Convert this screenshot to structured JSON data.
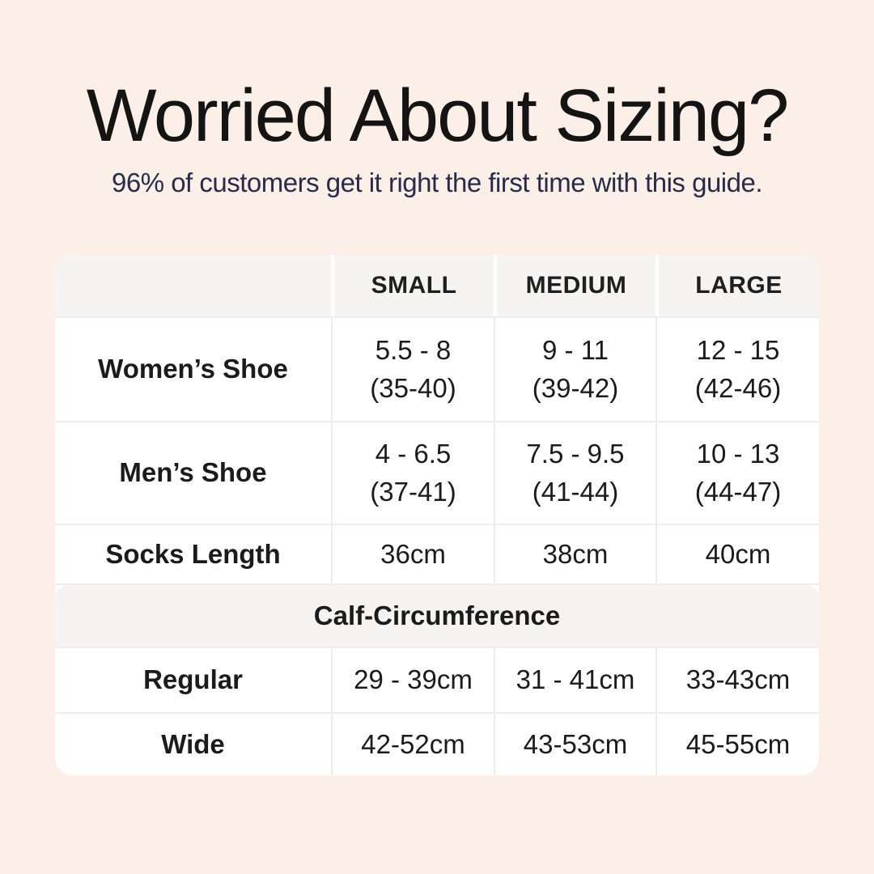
{
  "colors": {
    "background": "#fcefe7",
    "panel": "#ffffff",
    "band": "#f5f4f2",
    "divider": "#efedea",
    "text": "#1b1b1b",
    "subtitle": "#272c49"
  },
  "header": {
    "title": "Worried About Sizing?",
    "subtitle": "96% of customers get it right the first time with this guide."
  },
  "table": {
    "column_headers": [
      "SMALL",
      "MEDIUM",
      "LARGE"
    ],
    "shoe_rows": [
      {
        "label": "Women’s Shoe",
        "cells": [
          {
            "l1": "5.5 - 8",
            "l2": "(35-40)"
          },
          {
            "l1": "9 - 11",
            "l2": "(39-42)"
          },
          {
            "l1": "12 - 15",
            "l2": "(42-46)"
          }
        ]
      },
      {
        "label": "Men’s Shoe",
        "cells": [
          {
            "l1": "4 - 6.5",
            "l2": "(37-41)"
          },
          {
            "l1": "7.5 - 9.5",
            "l2": "(41-44)"
          },
          {
            "l1": "10 - 13",
            "l2": "(44-47)"
          }
        ]
      }
    ],
    "socks_row": {
      "label": "Socks Length",
      "cells": [
        "36cm",
        "38cm",
        "40cm"
      ]
    },
    "section_header": "Calf-Circumference",
    "calf_rows": [
      {
        "label": "Regular",
        "cells": [
          "29 - 39cm",
          "31 - 41cm",
          "33-43cm"
        ]
      },
      {
        "label": "Wide",
        "cells": [
          "42-52cm",
          "43-53cm",
          "45-55cm"
        ]
      }
    ]
  },
  "chart_data": {
    "type": "table",
    "title": "Worried About Sizing?",
    "subtitle": "96% of customers get it right the first time with this guide.",
    "columns": [
      "",
      "SMALL",
      "MEDIUM",
      "LARGE"
    ],
    "rows": [
      [
        "Women’s Shoe",
        "5.5 - 8 (35-40)",
        "9 - 11 (39-42)",
        "12 - 15 (42-46)"
      ],
      [
        "Men’s Shoe",
        "4 - 6.5 (37-41)",
        "7.5 - 9.5 (41-44)",
        "10 - 13 (44-47)"
      ],
      [
        "Socks Length",
        "36cm",
        "38cm",
        "40cm"
      ],
      [
        "Calf-Circumference",
        "",
        "",
        ""
      ],
      [
        "Regular",
        "29 - 39cm",
        "31 - 41cm",
        "33-43cm"
      ],
      [
        "Wide",
        "42-52cm",
        "43-53cm",
        "45-55cm"
      ]
    ]
  }
}
